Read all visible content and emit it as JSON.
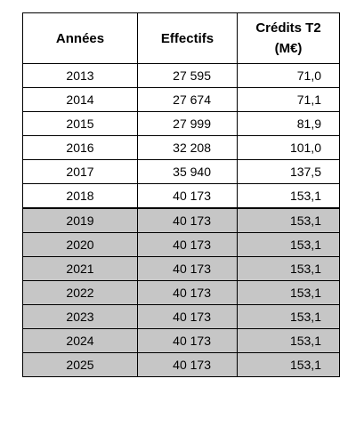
{
  "table": {
    "headers": {
      "year": "Années",
      "effectifs": "Effectifs",
      "credits_line1": "Crédits T2",
      "credits_line2": "(M€)"
    },
    "rows": [
      {
        "year": "2013",
        "effectifs": "27 595",
        "credits": "71,0",
        "shaded": false
      },
      {
        "year": "2014",
        "effectifs": "27 674",
        "credits": "71,1",
        "shaded": false
      },
      {
        "year": "2015",
        "effectifs": "27 999",
        "credits": "81,9",
        "shaded": false
      },
      {
        "year": "2016",
        "effectifs": "32 208",
        "credits": "101,0",
        "shaded": false
      },
      {
        "year": "2017",
        "effectifs": "35 940",
        "credits": "137,5",
        "shaded": false
      },
      {
        "year": "2018",
        "effectifs": "40 173",
        "credits": "153,1",
        "shaded": false
      },
      {
        "year": "2019",
        "effectifs": "40 173",
        "credits": "153,1",
        "shaded": true
      },
      {
        "year": "2020",
        "effectifs": "40 173",
        "credits": "153,1",
        "shaded": true
      },
      {
        "year": "2021",
        "effectifs": "40 173",
        "credits": "153,1",
        "shaded": true
      },
      {
        "year": "2022",
        "effectifs": "40 173",
        "credits": "153,1",
        "shaded": true
      },
      {
        "year": "2023",
        "effectifs": "40 173",
        "credits": "153,1",
        "shaded": true
      },
      {
        "year": "2024",
        "effectifs": "40 173",
        "credits": "153,1",
        "shaded": true
      },
      {
        "year": "2025",
        "effectifs": "40 173",
        "credits": "153,1",
        "shaded": true
      }
    ],
    "colors": {
      "shaded_row": "#c6c6c6",
      "border": "#000000"
    }
  }
}
